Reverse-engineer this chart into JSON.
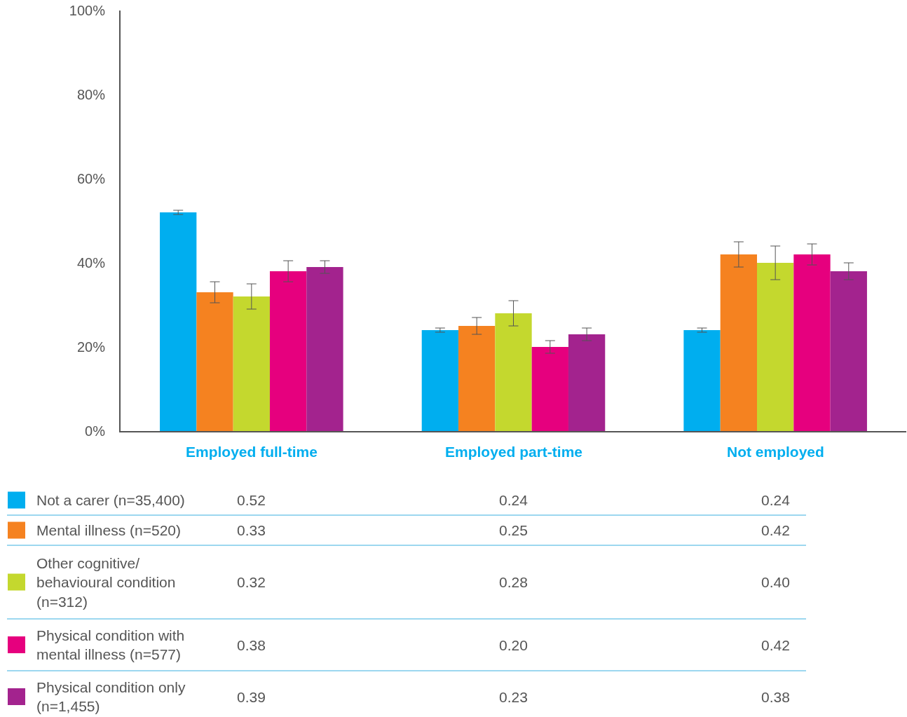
{
  "chart_data": {
    "type": "bar",
    "categories": [
      "Employed full-time",
      "Employed part-time",
      "Not employed"
    ],
    "series": [
      {
        "name": "Not a carer (n=35,400)",
        "color": "#00aeef",
        "values": [
          0.52,
          0.24,
          0.24
        ],
        "errors": [
          0.005,
          0.005,
          0.005
        ],
        "value_labels": [
          "0.52",
          "0.24",
          "0.24"
        ]
      },
      {
        "name": "Mental illness (n=520)",
        "color": "#f58220",
        "values": [
          0.33,
          0.25,
          0.42
        ],
        "errors": [
          0.025,
          0.02,
          0.03
        ],
        "value_labels": [
          "0.33",
          "0.25",
          "0.42"
        ]
      },
      {
        "name": "Other cognitive/ behavioural condition (n=312)",
        "color": "#c4d82e",
        "values": [
          0.32,
          0.28,
          0.4
        ],
        "errors": [
          0.03,
          0.03,
          0.04
        ],
        "value_labels": [
          "0.32",
          "0.28",
          "0.40"
        ]
      },
      {
        "name": "Physical condition with mental illness (n=577)",
        "color": "#e6007e",
        "values": [
          0.38,
          0.2,
          0.42
        ],
        "errors": [
          0.025,
          0.015,
          0.025
        ],
        "value_labels": [
          "0.38",
          "0.20",
          "0.42"
        ]
      },
      {
        "name": "Physical condition only (n=1,455)",
        "color": "#a3238e",
        "values": [
          0.39,
          0.23,
          0.38
        ],
        "errors": [
          0.015,
          0.015,
          0.02
        ],
        "value_labels": [
          "0.39",
          "0.23",
          "0.38"
        ]
      }
    ],
    "ylim": [
      0,
      1
    ],
    "yticks": [
      {
        "value": 0,
        "label": "0%"
      },
      {
        "value": 0.2,
        "label": "20%"
      },
      {
        "value": 0.4,
        "label": "40%"
      },
      {
        "value": 0.6,
        "label": "60%"
      },
      {
        "value": 0.8,
        "label": "80%"
      },
      {
        "value": 1,
        "label": "100%"
      }
    ],
    "legend": "bottom"
  }
}
